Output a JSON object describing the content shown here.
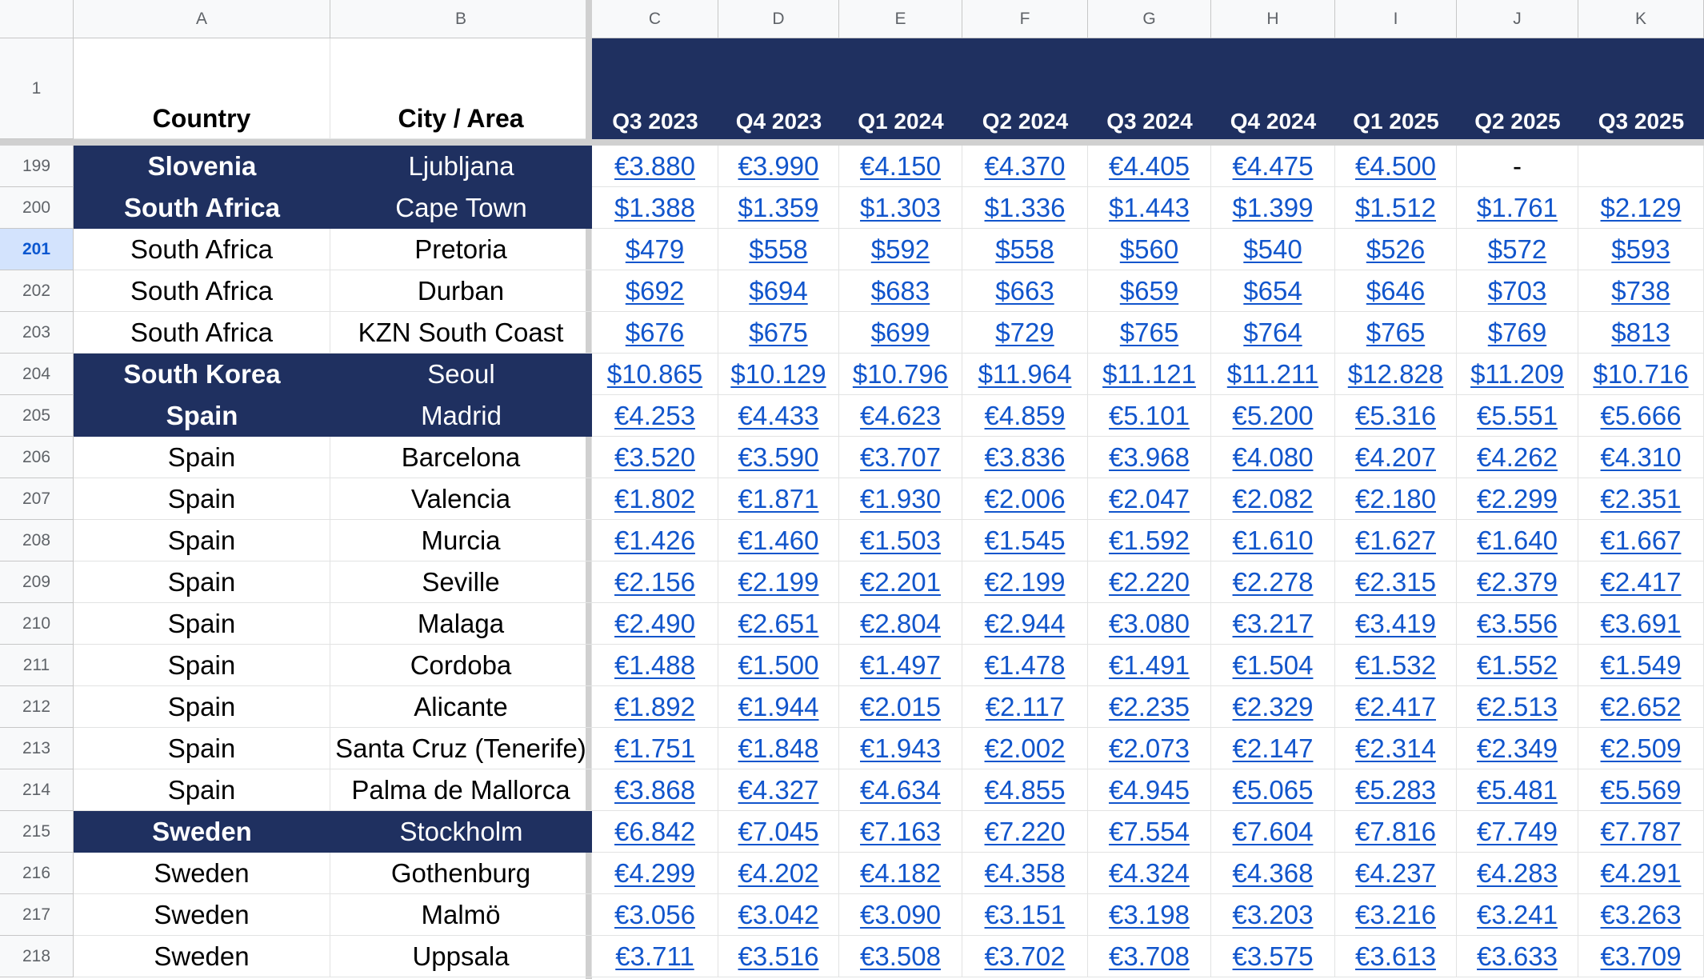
{
  "columns": [
    "A",
    "B",
    "C",
    "D",
    "E",
    "F",
    "G",
    "H",
    "I",
    "J",
    "K"
  ],
  "header_row": {
    "row_number": "1",
    "labels": [
      "Country",
      "City / Area",
      "Q3 2023",
      "Q4 2023",
      "Q1 2024",
      "Q2 2024",
      "Q3 2024",
      "Q4 2024",
      "Q1 2025",
      "Q2 2025",
      "Q3 2025"
    ]
  },
  "selected_row": "201",
  "colors": {
    "header_fill": "#1f3060",
    "link_text": "#1155cc",
    "selected_row_header": "#d3e3fd"
  },
  "rows": [
    {
      "num": "199",
      "highlight": true,
      "country": "Slovenia",
      "city": "Ljubljana",
      "values": [
        "€3.880",
        "€3.990",
        "€4.150",
        "€4.370",
        "€4.405",
        "€4.475",
        "€4.500",
        "-",
        ""
      ]
    },
    {
      "num": "200",
      "highlight": true,
      "country": "South Africa",
      "city": "Cape Town",
      "values": [
        "$1.388",
        "$1.359",
        "$1.303",
        "$1.336",
        "$1.443",
        "$1.399",
        "$1.512",
        "$1.761",
        "$2.129"
      ]
    },
    {
      "num": "201",
      "highlight": false,
      "country": "South Africa",
      "city": "Pretoria",
      "values": [
        "$479",
        "$558",
        "$592",
        "$558",
        "$560",
        "$540",
        "$526",
        "$572",
        "$593"
      ]
    },
    {
      "num": "202",
      "highlight": false,
      "country": "South Africa",
      "city": "Durban",
      "values": [
        "$692",
        "$694",
        "$683",
        "$663",
        "$659",
        "$654",
        "$646",
        "$703",
        "$738"
      ]
    },
    {
      "num": "203",
      "highlight": false,
      "country": "South Africa",
      "city": "KZN South Coast",
      "values": [
        "$676",
        "$675",
        "$699",
        "$729",
        "$765",
        "$764",
        "$765",
        "$769",
        "$813"
      ]
    },
    {
      "num": "204",
      "highlight": true,
      "country": "South Korea",
      "city": "Seoul",
      "values": [
        "$10.865",
        "$10.129",
        "$10.796",
        "$11.964",
        "$11.121",
        "$11.211",
        "$12.828",
        "$11.209",
        "$10.716"
      ]
    },
    {
      "num": "205",
      "highlight": true,
      "country": "Spain",
      "city": "Madrid",
      "values": [
        "€4.253",
        "€4.433",
        "€4.623",
        "€4.859",
        "€5.101",
        "€5.200",
        "€5.316",
        "€5.551",
        "€5.666"
      ]
    },
    {
      "num": "206",
      "highlight": false,
      "country": "Spain",
      "city": "Barcelona",
      "values": [
        "€3.520",
        "€3.590",
        "€3.707",
        "€3.836",
        "€3.968",
        "€4.080",
        "€4.207",
        "€4.262",
        "€4.310"
      ]
    },
    {
      "num": "207",
      "highlight": false,
      "country": "Spain",
      "city": "Valencia",
      "values": [
        "€1.802",
        "€1.871",
        "€1.930",
        "€2.006",
        "€2.047",
        "€2.082",
        "€2.180",
        "€2.299",
        "€2.351"
      ]
    },
    {
      "num": "208",
      "highlight": false,
      "country": "Spain",
      "city": "Murcia",
      "values": [
        "€1.426",
        "€1.460",
        "€1.503",
        "€1.545",
        "€1.592",
        "€1.610",
        "€1.627",
        "€1.640",
        "€1.667"
      ]
    },
    {
      "num": "209",
      "highlight": false,
      "country": "Spain",
      "city": "Seville",
      "values": [
        "€2.156",
        "€2.199",
        "€2.201",
        "€2.199",
        "€2.220",
        "€2.278",
        "€2.315",
        "€2.379",
        "€2.417"
      ]
    },
    {
      "num": "210",
      "highlight": false,
      "country": "Spain",
      "city": "Malaga",
      "values": [
        "€2.490",
        "€2.651",
        "€2.804",
        "€2.944",
        "€3.080",
        "€3.217",
        "€3.419",
        "€3.556",
        "€3.691"
      ]
    },
    {
      "num": "211",
      "highlight": false,
      "country": "Spain",
      "city": "Cordoba",
      "values": [
        "€1.488",
        "€1.500",
        "€1.497",
        "€1.478",
        "€1.491",
        "€1.504",
        "€1.532",
        "€1.552",
        "€1.549"
      ]
    },
    {
      "num": "212",
      "highlight": false,
      "country": "Spain",
      "city": "Alicante",
      "values": [
        "€1.892",
        "€1.944",
        "€2.015",
        "€2.117",
        "€2.235",
        "€2.329",
        "€2.417",
        "€2.513",
        "€2.652"
      ]
    },
    {
      "num": "213",
      "highlight": false,
      "country": "Spain",
      "city": "Santa Cruz (Tenerife)",
      "values": [
        "€1.751",
        "€1.848",
        "€1.943",
        "€2.002",
        "€2.073",
        "€2.147",
        "€2.314",
        "€2.349",
        "€2.509"
      ]
    },
    {
      "num": "214",
      "highlight": false,
      "country": "Spain",
      "city": "Palma de Mallorca",
      "values": [
        "€3.868",
        "€4.327",
        "€4.634",
        "€4.855",
        "€4.945",
        "€5.065",
        "€5.283",
        "€5.481",
        "€5.569"
      ]
    },
    {
      "num": "215",
      "highlight": true,
      "country": "Sweden",
      "city": "Stockholm",
      "values": [
        "€6.842",
        "€7.045",
        "€7.163",
        "€7.220",
        "€7.554",
        "€7.604",
        "€7.816",
        "€7.749",
        "€7.787"
      ]
    },
    {
      "num": "216",
      "highlight": false,
      "country": "Sweden",
      "city": "Gothenburg",
      "values": [
        "€4.299",
        "€4.202",
        "€4.182",
        "€4.358",
        "€4.324",
        "€4.368",
        "€4.237",
        "€4.283",
        "€4.291"
      ]
    },
    {
      "num": "217",
      "highlight": false,
      "country": "Sweden",
      "city": "Malmö",
      "values": [
        "€3.056",
        "€3.042",
        "€3.090",
        "€3.151",
        "€3.198",
        "€3.203",
        "€3.216",
        "€3.241",
        "€3.263"
      ]
    },
    {
      "num": "218",
      "highlight": false,
      "country": "Sweden",
      "city": "Uppsala",
      "values": [
        "€3.711",
        "€3.516",
        "€3.508",
        "€3.702",
        "€3.708",
        "€3.575",
        "€3.613",
        "€3.633",
        "€3.709"
      ]
    }
  ]
}
